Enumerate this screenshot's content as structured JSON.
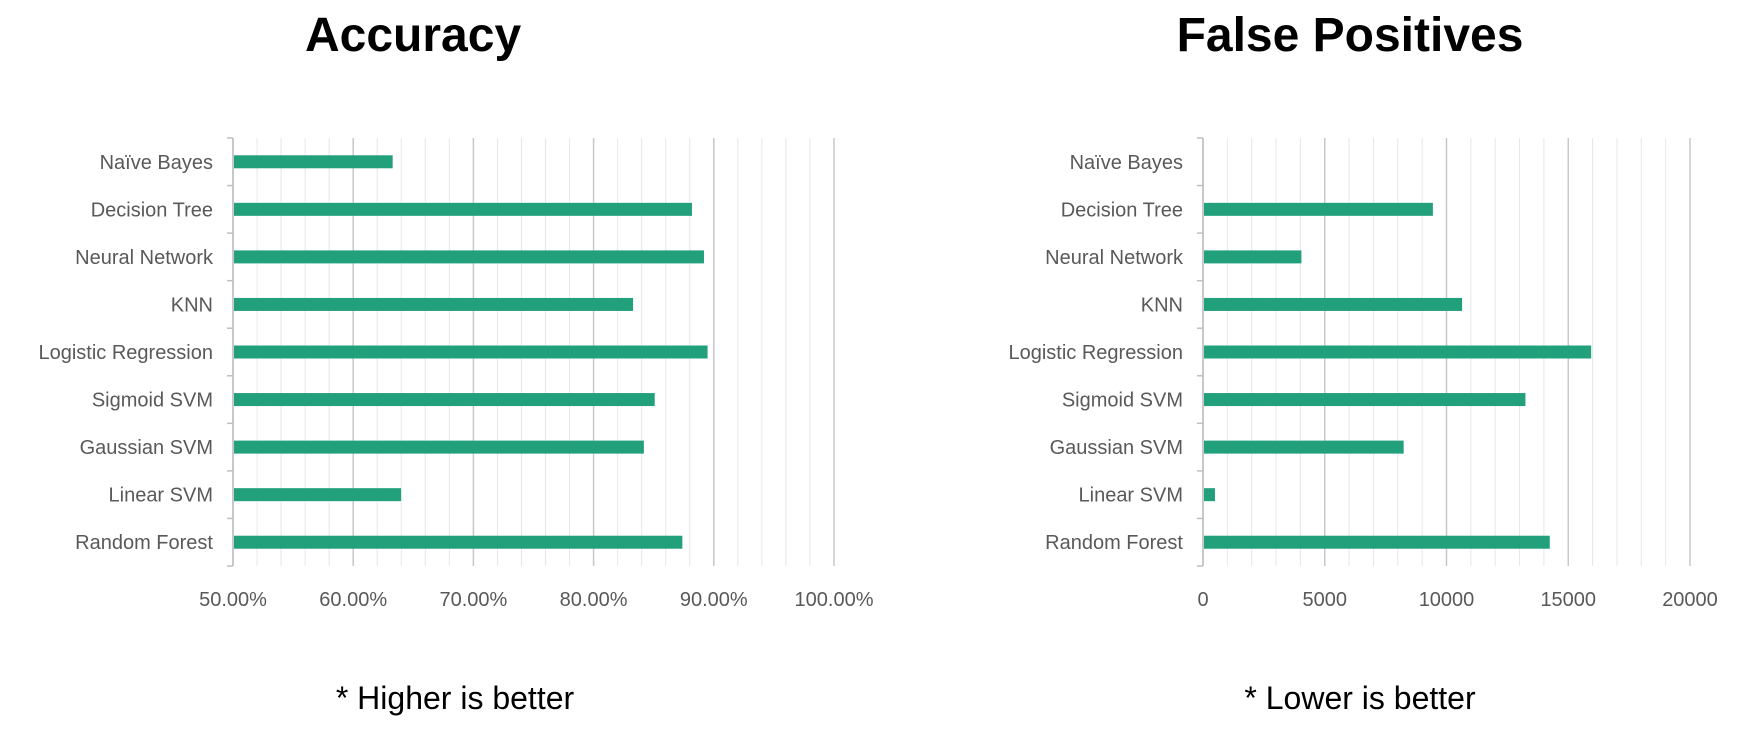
{
  "chart_data": [
    {
      "type": "bar",
      "orientation": "horizontal",
      "title": "Accuracy",
      "note": "* Higher is better",
      "categories": [
        "Naïve Bayes",
        "Decision Tree",
        "Neural Network",
        "KNN",
        "Logistic Regression",
        "Sigmoid SVM",
        "Gaussian SVM",
        "Linear SVM",
        "Random Forest"
      ],
      "values": [
        0.632,
        0.881,
        0.891,
        0.832,
        0.894,
        0.85,
        0.841,
        0.639,
        0.873
      ],
      "xlim": [
        0.5,
        1.0
      ],
      "major_ticks": [
        0.5,
        0.6,
        0.7,
        0.8,
        0.9,
        1.0
      ],
      "tick_labels": [
        "50.00%",
        "60.00%",
        "70.00%",
        "80.00%",
        "90.00%",
        "100.00%"
      ],
      "minor_step": 0.02,
      "bar_color": "#22A07C",
      "grid": true
    },
    {
      "type": "bar",
      "orientation": "horizontal",
      "title": "False Positives",
      "note": "* Lower is better",
      "categories": [
        "Naïve Bayes",
        "Decision Tree",
        "Neural Network",
        "KNN",
        "Logistic Regression",
        "Sigmoid SVM",
        "Gaussian SVM",
        "Linear SVM",
        "Random Forest"
      ],
      "values": [
        0,
        9400,
        4000,
        10600,
        15900,
        13200,
        8200,
        450,
        14200
      ],
      "xlim": [
        0,
        20000
      ],
      "major_ticks": [
        0,
        5000,
        10000,
        15000,
        20000
      ],
      "tick_labels": [
        "0",
        "5000",
        "10000",
        "15000",
        "20000"
      ],
      "minor_step": 1000,
      "bar_color": "#22A07C",
      "grid": true
    }
  ]
}
